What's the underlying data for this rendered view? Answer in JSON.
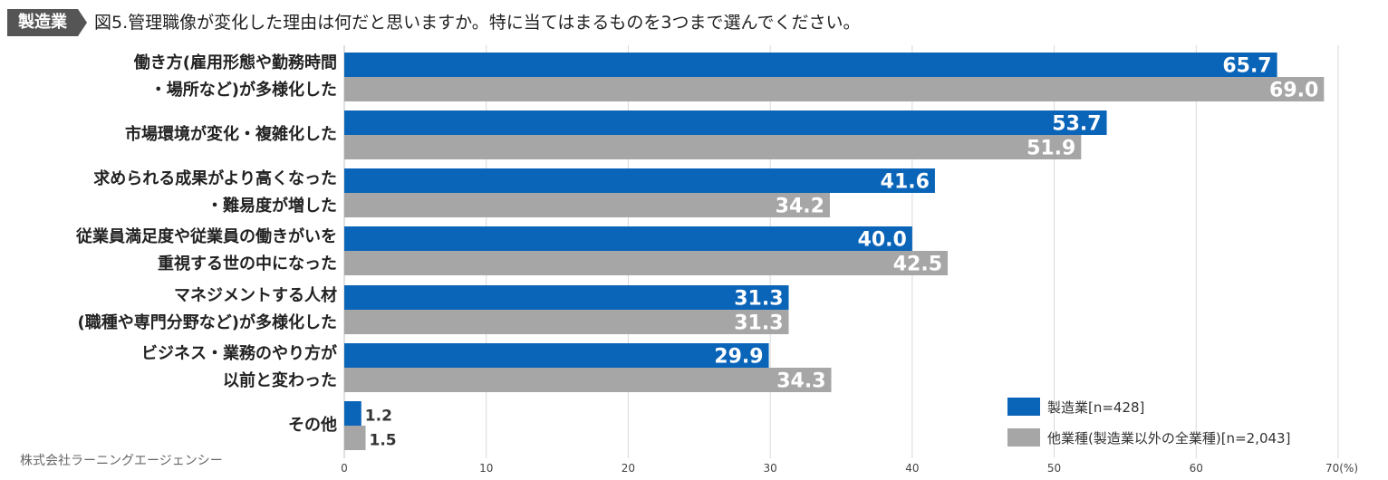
{
  "badge": "製造業",
  "chart_data": {
    "type": "bar",
    "orientation": "horizontal",
    "title": "図5.管理職像が変化した理由は何だと思いますか。特に当てはまるものを3つまで選んでください。",
    "categories": [
      [
        "働き方(雇用形態や勤務時間",
        "・場所など)が多様化した"
      ],
      [
        "市場環境が変化・複雑化した"
      ],
      [
        "求められる成果がより高くなった",
        "・難易度が増した"
      ],
      [
        "従業員満足度や従業員の働きがいを",
        "重視する世の中になった"
      ],
      [
        "マネジメントする人材",
        "(職種や専門分野など)が多様化した"
      ],
      [
        "ビジネス・業務のやり方が",
        "以前と変わった"
      ],
      [
        "その他"
      ]
    ],
    "series": [
      {
        "name": "製造業[n=428]",
        "color": "#0a64b8",
        "values": [
          65.7,
          53.7,
          41.6,
          40.0,
          31.3,
          29.9,
          1.2
        ]
      },
      {
        "name": "他業種(製造業以外の全業種)[n=2,043]",
        "color": "#a6a6a6",
        "values": [
          69.0,
          51.9,
          34.2,
          42.5,
          31.3,
          34.3,
          1.5
        ]
      }
    ],
    "xlim": [
      0,
      70
    ],
    "xticks": [
      "0",
      "10",
      "20",
      "30",
      "40",
      "50",
      "60",
      "70(%)"
    ],
    "grid": true,
    "legend_position": "bottom-right"
  },
  "source": "株式会社ラーニングエージェンシー"
}
